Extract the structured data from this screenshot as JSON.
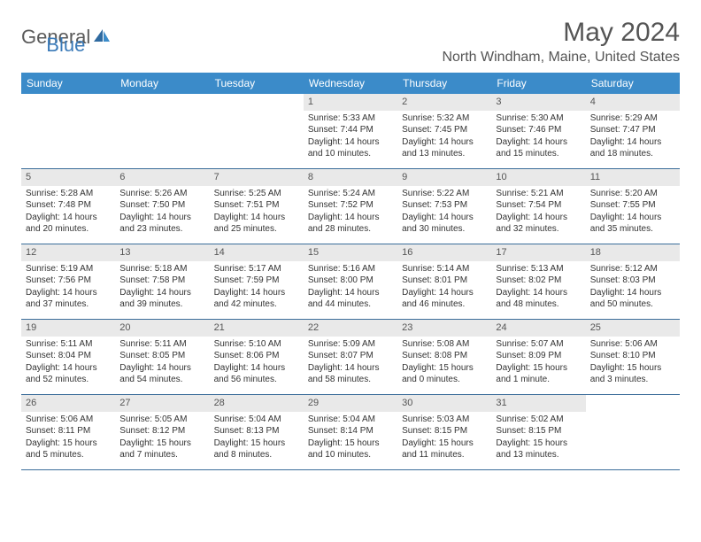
{
  "brand": {
    "part1": "General",
    "part2": "Blue"
  },
  "title": "May 2024",
  "location": "North Windham, Maine, United States",
  "colors": {
    "header_bg": "#3b8bc9",
    "header_text": "#ffffff",
    "band_bg": "#e9e9e9",
    "rule": "#3b6d9a",
    "body_text": "#333333",
    "title_text": "#555555",
    "logo_gray": "#5a5a5a",
    "logo_blue": "#3a7ab8",
    "page_bg": "#ffffff"
  },
  "typography": {
    "title_fontsize": 30,
    "location_fontsize": 16,
    "weekday_fontsize": 12,
    "daynum_fontsize": 11,
    "cell_fontsize": 10
  },
  "weekdays": [
    "Sunday",
    "Monday",
    "Tuesday",
    "Wednesday",
    "Thursday",
    "Friday",
    "Saturday"
  ],
  "weeks": [
    [
      null,
      null,
      null,
      {
        "n": "1",
        "sr": "Sunrise: 5:33 AM",
        "ss": "Sunset: 7:44 PM",
        "d1": "Daylight: 14 hours",
        "d2": "and 10 minutes."
      },
      {
        "n": "2",
        "sr": "Sunrise: 5:32 AM",
        "ss": "Sunset: 7:45 PM",
        "d1": "Daylight: 14 hours",
        "d2": "and 13 minutes."
      },
      {
        "n": "3",
        "sr": "Sunrise: 5:30 AM",
        "ss": "Sunset: 7:46 PM",
        "d1": "Daylight: 14 hours",
        "d2": "and 15 minutes."
      },
      {
        "n": "4",
        "sr": "Sunrise: 5:29 AM",
        "ss": "Sunset: 7:47 PM",
        "d1": "Daylight: 14 hours",
        "d2": "and 18 minutes."
      }
    ],
    [
      {
        "n": "5",
        "sr": "Sunrise: 5:28 AM",
        "ss": "Sunset: 7:48 PM",
        "d1": "Daylight: 14 hours",
        "d2": "and 20 minutes."
      },
      {
        "n": "6",
        "sr": "Sunrise: 5:26 AM",
        "ss": "Sunset: 7:50 PM",
        "d1": "Daylight: 14 hours",
        "d2": "and 23 minutes."
      },
      {
        "n": "7",
        "sr": "Sunrise: 5:25 AM",
        "ss": "Sunset: 7:51 PM",
        "d1": "Daylight: 14 hours",
        "d2": "and 25 minutes."
      },
      {
        "n": "8",
        "sr": "Sunrise: 5:24 AM",
        "ss": "Sunset: 7:52 PM",
        "d1": "Daylight: 14 hours",
        "d2": "and 28 minutes."
      },
      {
        "n": "9",
        "sr": "Sunrise: 5:22 AM",
        "ss": "Sunset: 7:53 PM",
        "d1": "Daylight: 14 hours",
        "d2": "and 30 minutes."
      },
      {
        "n": "10",
        "sr": "Sunrise: 5:21 AM",
        "ss": "Sunset: 7:54 PM",
        "d1": "Daylight: 14 hours",
        "d2": "and 32 minutes."
      },
      {
        "n": "11",
        "sr": "Sunrise: 5:20 AM",
        "ss": "Sunset: 7:55 PM",
        "d1": "Daylight: 14 hours",
        "d2": "and 35 minutes."
      }
    ],
    [
      {
        "n": "12",
        "sr": "Sunrise: 5:19 AM",
        "ss": "Sunset: 7:56 PM",
        "d1": "Daylight: 14 hours",
        "d2": "and 37 minutes."
      },
      {
        "n": "13",
        "sr": "Sunrise: 5:18 AM",
        "ss": "Sunset: 7:58 PM",
        "d1": "Daylight: 14 hours",
        "d2": "and 39 minutes."
      },
      {
        "n": "14",
        "sr": "Sunrise: 5:17 AM",
        "ss": "Sunset: 7:59 PM",
        "d1": "Daylight: 14 hours",
        "d2": "and 42 minutes."
      },
      {
        "n": "15",
        "sr": "Sunrise: 5:16 AM",
        "ss": "Sunset: 8:00 PM",
        "d1": "Daylight: 14 hours",
        "d2": "and 44 minutes."
      },
      {
        "n": "16",
        "sr": "Sunrise: 5:14 AM",
        "ss": "Sunset: 8:01 PM",
        "d1": "Daylight: 14 hours",
        "d2": "and 46 minutes."
      },
      {
        "n": "17",
        "sr": "Sunrise: 5:13 AM",
        "ss": "Sunset: 8:02 PM",
        "d1": "Daylight: 14 hours",
        "d2": "and 48 minutes."
      },
      {
        "n": "18",
        "sr": "Sunrise: 5:12 AM",
        "ss": "Sunset: 8:03 PM",
        "d1": "Daylight: 14 hours",
        "d2": "and 50 minutes."
      }
    ],
    [
      {
        "n": "19",
        "sr": "Sunrise: 5:11 AM",
        "ss": "Sunset: 8:04 PM",
        "d1": "Daylight: 14 hours",
        "d2": "and 52 minutes."
      },
      {
        "n": "20",
        "sr": "Sunrise: 5:11 AM",
        "ss": "Sunset: 8:05 PM",
        "d1": "Daylight: 14 hours",
        "d2": "and 54 minutes."
      },
      {
        "n": "21",
        "sr": "Sunrise: 5:10 AM",
        "ss": "Sunset: 8:06 PM",
        "d1": "Daylight: 14 hours",
        "d2": "and 56 minutes."
      },
      {
        "n": "22",
        "sr": "Sunrise: 5:09 AM",
        "ss": "Sunset: 8:07 PM",
        "d1": "Daylight: 14 hours",
        "d2": "and 58 minutes."
      },
      {
        "n": "23",
        "sr": "Sunrise: 5:08 AM",
        "ss": "Sunset: 8:08 PM",
        "d1": "Daylight: 15 hours",
        "d2": "and 0 minutes."
      },
      {
        "n": "24",
        "sr": "Sunrise: 5:07 AM",
        "ss": "Sunset: 8:09 PM",
        "d1": "Daylight: 15 hours",
        "d2": "and 1 minute."
      },
      {
        "n": "25",
        "sr": "Sunrise: 5:06 AM",
        "ss": "Sunset: 8:10 PM",
        "d1": "Daylight: 15 hours",
        "d2": "and 3 minutes."
      }
    ],
    [
      {
        "n": "26",
        "sr": "Sunrise: 5:06 AM",
        "ss": "Sunset: 8:11 PM",
        "d1": "Daylight: 15 hours",
        "d2": "and 5 minutes."
      },
      {
        "n": "27",
        "sr": "Sunrise: 5:05 AM",
        "ss": "Sunset: 8:12 PM",
        "d1": "Daylight: 15 hours",
        "d2": "and 7 minutes."
      },
      {
        "n": "28",
        "sr": "Sunrise: 5:04 AM",
        "ss": "Sunset: 8:13 PM",
        "d1": "Daylight: 15 hours",
        "d2": "and 8 minutes."
      },
      {
        "n": "29",
        "sr": "Sunrise: 5:04 AM",
        "ss": "Sunset: 8:14 PM",
        "d1": "Daylight: 15 hours",
        "d2": "and 10 minutes."
      },
      {
        "n": "30",
        "sr": "Sunrise: 5:03 AM",
        "ss": "Sunset: 8:15 PM",
        "d1": "Daylight: 15 hours",
        "d2": "and 11 minutes."
      },
      {
        "n": "31",
        "sr": "Sunrise: 5:02 AM",
        "ss": "Sunset: 8:15 PM",
        "d1": "Daylight: 15 hours",
        "d2": "and 13 minutes."
      },
      null
    ]
  ]
}
